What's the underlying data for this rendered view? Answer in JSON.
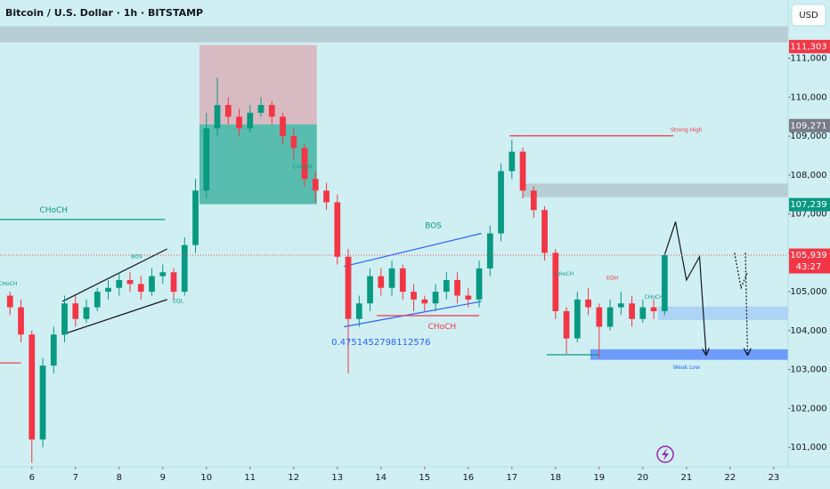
{
  "chart_data": {
    "type": "candlestick",
    "title": "Bitcoin / U.S. Dollar · 1h · BITSTAMP",
    "currency": "USD",
    "x": [
      5.5,
      5.75,
      6,
      6.25,
      6.5,
      6.75,
      7,
      7.25,
      7.5,
      7.75,
      8,
      8.25,
      8.5,
      8.75,
      9,
      9.25,
      9.5,
      9.75,
      10,
      10.25,
      10.5,
      10.75,
      11,
      11.25,
      11.5,
      11.75,
      12,
      12.25,
      12.5,
      12.75,
      13,
      13.25,
      13.5,
      13.75,
      14,
      14.25,
      14.5,
      14.75,
      15,
      15.25,
      15.5,
      15.75,
      16,
      16.25,
      16.5,
      16.75,
      17,
      17.25,
      17.5,
      17.75,
      18,
      18.25,
      18.5,
      18.75,
      19,
      19.25,
      19.5,
      19.75,
      20,
      20.25,
      20.5
    ],
    "open": [
      104900,
      104600,
      103900,
      101200,
      103100,
      103900,
      104700,
      104300,
      104600,
      105000,
      105100,
      105300,
      105200,
      105000,
      105400,
      105500,
      105000,
      106200,
      107600,
      109200,
      109800,
      109500,
      109200,
      109600,
      109800,
      109500,
      109000,
      108700,
      107900,
      107600,
      107300,
      105900,
      104300,
      104700,
      105400,
      105100,
      105600,
      105000,
      104800,
      104700,
      105000,
      105300,
      104900,
      104800,
      105600,
      106500,
      108100,
      108600,
      107600,
      107100,
      106000,
      104500,
      103800,
      104800,
      104600,
      104100,
      104600,
      104700,
      104300,
      104600,
      104500
    ],
    "high": [
      105000,
      104800,
      104000,
      103300,
      104100,
      104900,
      104900,
      104800,
      105100,
      105300,
      105500,
      105500,
      105400,
      105600,
      105700,
      105600,
      106400,
      107900,
      109600,
      110500,
      110000,
      109700,
      109800,
      110000,
      109900,
      109600,
      109200,
      108800,
      108100,
      107800,
      107500,
      106100,
      104900,
      105600,
      105600,
      105800,
      105700,
      105200,
      104900,
      105200,
      105500,
      105500,
      105100,
      105800,
      106700,
      108300,
      108900,
      108700,
      107700,
      107200,
      106100,
      104600,
      105000,
      105100,
      104700,
      104800,
      105000,
      104900,
      104800,
      104800,
      106000
    ],
    "low": [
      104400,
      103700,
      100600,
      101000,
      102900,
      103700,
      104100,
      104200,
      104500,
      104800,
      104900,
      105000,
      104800,
      104900,
      105200,
      104800,
      104900,
      106000,
      107400,
      109000,
      109300,
      109000,
      109100,
      109500,
      109300,
      108800,
      108400,
      107700,
      107300,
      107100,
      105700,
      102900,
      104100,
      104500,
      104900,
      104900,
      104800,
      104500,
      104500,
      104500,
      104800,
      104700,
      104600,
      104600,
      105400,
      106300,
      107900,
      107400,
      106900,
      105800,
      104300,
      103400,
      103700,
      104400,
      103300,
      104000,
      104400,
      104100,
      104200,
      104300,
      104400
    ],
    "close": [
      104600,
      103900,
      101200,
      103100,
      103900,
      104700,
      104300,
      104600,
      105000,
      105100,
      105300,
      105200,
      105000,
      105400,
      105500,
      105000,
      106200,
      107600,
      109200,
      109800,
      109500,
      109200,
      109600,
      109800,
      109500,
      109000,
      108700,
      107900,
      107600,
      107300,
      105900,
      104300,
      104700,
      105400,
      105100,
      105600,
      105000,
      104800,
      104700,
      105000,
      105300,
      104900,
      104800,
      105600,
      106500,
      108100,
      108600,
      107600,
      107100,
      106000,
      104500,
      103800,
      104800,
      104600,
      104100,
      104600,
      104700,
      104300,
      104600,
      104500,
      105939
    ],
    "up_color": "#089981",
    "down_color": "#f23645",
    "xlim": [
      5.27,
      23.33
    ],
    "ylim": [
      100500,
      112500
    ],
    "xticks": [
      6,
      7,
      8,
      9,
      10,
      11,
      12,
      13,
      14,
      15,
      16,
      17,
      18,
      19,
      20,
      21,
      22,
      23
    ],
    "yticks": [
      {
        "value": 101000,
        "label": "101,000"
      },
      {
        "value": 102000,
        "label": "102,000"
      },
      {
        "value": 103000,
        "label": "103,000"
      },
      {
        "value": 104000,
        "label": "104,000"
      },
      {
        "value": 105000,
        "label": "105,000"
      },
      {
        "value": 106000,
        "label": "106,000"
      },
      {
        "value": 107000,
        "label": "107,000"
      },
      {
        "value": 108000,
        "label": "108,000"
      },
      {
        "value": 109000,
        "label": "109,000"
      },
      {
        "value": 110000,
        "label": "110,000"
      },
      {
        "value": 111000,
        "label": "111,000"
      }
    ],
    "grid": false,
    "zones": [
      {
        "x": [
          5.27,
          23.33
        ],
        "y": [
          111412,
          111824
        ],
        "color": "rgba(120,123,134,0.28)"
      },
      {
        "x": [
          9.84,
          12.53
        ],
        "y": [
          109300,
          111340
        ],
        "color": "rgba(242,54,69,0.28)"
      },
      {
        "x": [
          9.84,
          12.53
        ],
        "y": [
          107250,
          109300
        ],
        "color": "rgba(8,153,129,0.6)"
      },
      {
        "x": [
          17.24,
          23.33
        ],
        "y": [
          107430,
          107780
        ],
        "color": "rgba(120,123,134,0.28)"
      },
      {
        "x": [
          20.35,
          23.33
        ],
        "y": [
          104270,
          104620
        ],
        "color": "rgba(41,98,255,0.2)"
      },
      {
        "x": [
          18.8,
          23.33
        ],
        "y": [
          103250,
          103520
        ],
        "color": "rgba(41,98,255,0.6)"
      }
    ],
    "lines": [
      {
        "x": [
          5.27,
          9.05
        ],
        "y": [
          106858,
          106858
        ],
        "color": "#089981"
      },
      {
        "x": [
          16.95,
          20.7
        ],
        "y": [
          109009,
          109009
        ],
        "color": "#f23645"
      },
      {
        "x": [
          6.7,
          9.1
        ],
        "y": [
          104750,
          106100
        ],
        "color": "#131722"
      },
      {
        "x": [
          6.7,
          9.1
        ],
        "y": [
          103900,
          104800
        ],
        "color": "#131722"
      },
      {
        "x": [
          13.15,
          16.3
        ],
        "y": [
          105650,
          106500
        ],
        "color": "#2962ff"
      },
      {
        "x": [
          13.15,
          16.3
        ],
        "y": [
          104100,
          104750
        ],
        "color": "#2962ff"
      },
      {
        "x": [
          13.9,
          16.25
        ],
        "y": [
          104385,
          104385
        ],
        "color": "#f23645"
      },
      {
        "x": [
          5.27,
          5.75
        ],
        "y": [
          103170,
          103170
        ],
        "color": "#f23645"
      },
      {
        "x": [
          17.8,
          19.0
        ],
        "y": [
          103380,
          103380
        ],
        "color": "#089981"
      },
      {
        "x": [
          20.5,
          20.75,
          21.0,
          21.3,
          21.45
        ],
        "y": [
          105950,
          106800,
          105300,
          105900,
          103400
        ],
        "color": "#131722",
        "arrow": true
      },
      {
        "x": [
          22.1,
          22.25,
          22.4
        ],
        "y": [
          106000,
          105100,
          105500
        ],
        "color": "#131722",
        "dash": true
      },
      {
        "x": [
          22.35,
          22.4
        ],
        "y": [
          106000,
          103400
        ],
        "color": "#131722",
        "dash": true,
        "arrow": true
      }
    ],
    "annotations": [
      {
        "text": "CHoCH",
        "x": 6.5,
        "y": 107100,
        "color": "#089981",
        "size": 9
      },
      {
        "text": "BOS",
        "x": 8.4,
        "y": 105900,
        "color": "#089981",
        "size": 6
      },
      {
        "text": "EQL",
        "x": 9.35,
        "y": 104750,
        "color": "#089981",
        "size": 6
      },
      {
        "text": "CHoCH",
        "x": 5.45,
        "y": 105200,
        "color": "#089981",
        "size": 6
      },
      {
        "text": "CHoCH",
        "x": 12.2,
        "y": 108200,
        "color": "#089981",
        "size": 6
      },
      {
        "text": "BOS",
        "x": 15.2,
        "y": 106700,
        "color": "#089981",
        "size": 9
      },
      {
        "text": "0.4751452798112576",
        "x": 14.0,
        "y": 103700,
        "color": "#2962ff",
        "size": 10
      },
      {
        "text": "CHoCH",
        "x": 15.4,
        "y": 104100,
        "color": "#f23645",
        "size": 9
      },
      {
        "text": "CHoCH",
        "x": 18.2,
        "y": 105450,
        "color": "#089981",
        "size": 6
      },
      {
        "text": "EQH",
        "x": 19.3,
        "y": 105350,
        "color": "#f23645",
        "size": 6
      },
      {
        "text": "CHoCH",
        "x": 20.25,
        "y": 104850,
        "color": "#089981",
        "size": 6
      },
      {
        "text": "Strong High",
        "x": 21.0,
        "y": 109150,
        "color": "#f23645",
        "size": 6
      },
      {
        "text": "Weak Low",
        "x": 21.0,
        "y": 103050,
        "color": "#2962ff",
        "size": 6
      }
    ],
    "price_labels": [
      {
        "value": 111303,
        "label": "111,303",
        "color": "#f23645"
      },
      {
        "value": 109271,
        "label": "109,271",
        "color": "#787b86"
      },
      {
        "value": 107239,
        "label": "107,239",
        "color": "#089981"
      },
      {
        "value": 105939,
        "label": "105,939",
        "color": "#f23645",
        "sub": "43:27"
      }
    ]
  }
}
